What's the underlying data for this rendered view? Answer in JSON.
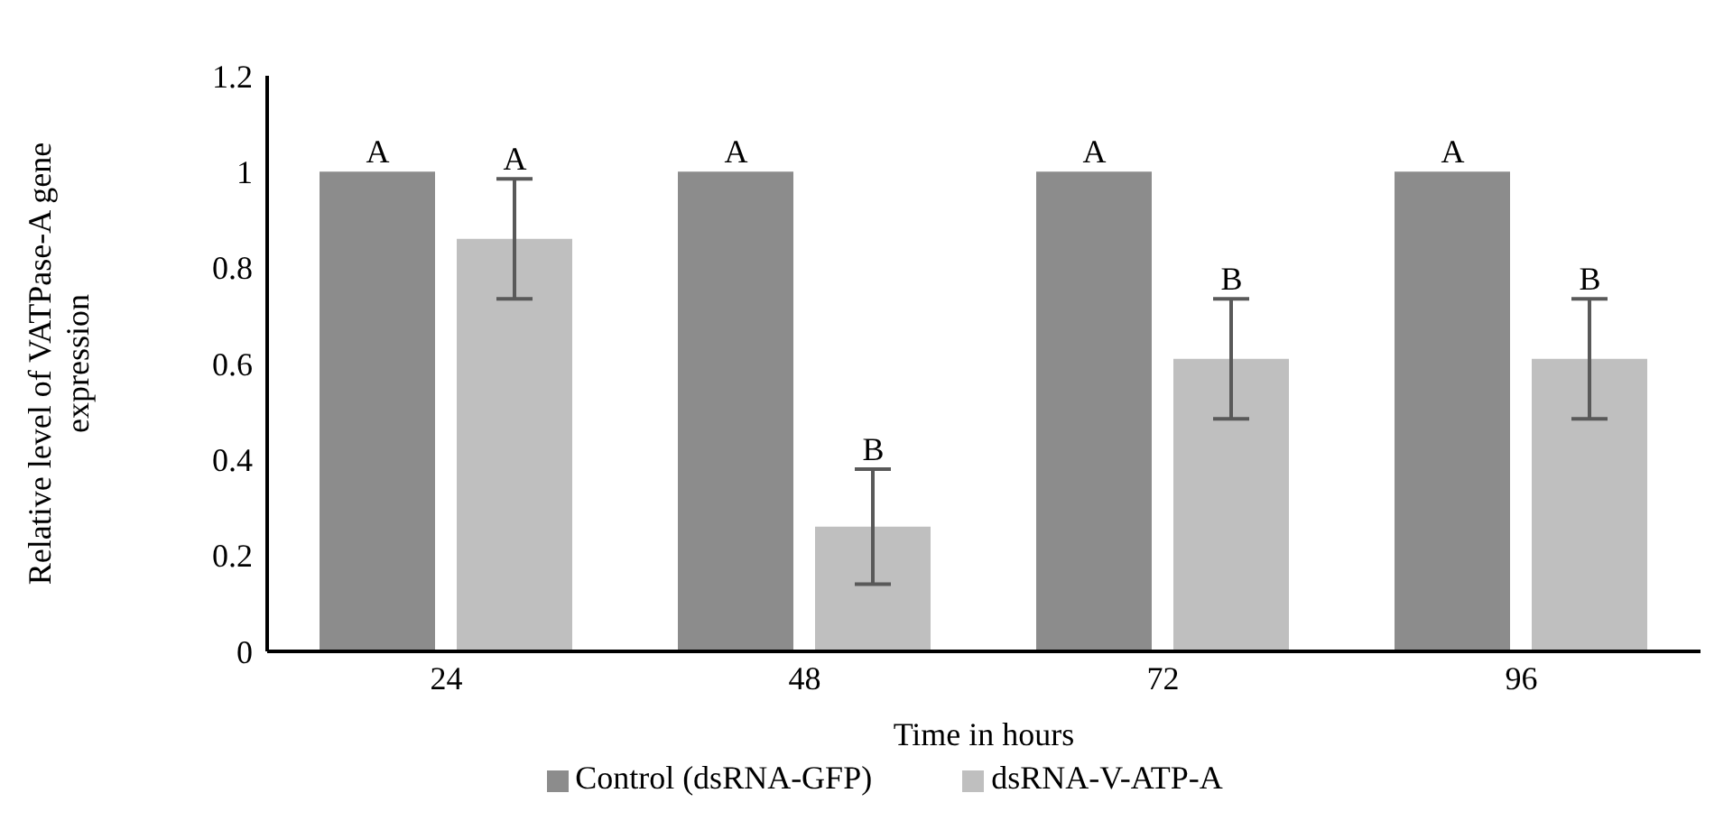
{
  "chart_data": {
    "type": "bar",
    "xlabel": "Time in hours",
    "ylabel": "Relative level of VATPase-A gene expression",
    "categories": [
      "24",
      "48",
      "72",
      "96"
    ],
    "series": [
      {
        "name": "Control (dsRNA-GFP)",
        "color": "#8c8c8c",
        "values": [
          1,
          1,
          1,
          1
        ],
        "errors": [
          0,
          0,
          0,
          0
        ]
      },
      {
        "name": "dsRNA-V-ATP-A",
        "color": "#bfbfbf",
        "values": [
          0.86,
          0.26,
          0.61,
          0.61
        ],
        "errors": [
          0.125,
          0.12,
          0.125,
          0.125
        ]
      }
    ],
    "annotations": [
      "A",
      "A",
      "A",
      "B",
      "A",
      "B",
      "A",
      "B"
    ],
    "ylim": [
      0,
      1.2
    ],
    "yticks": [
      0,
      0.2,
      0.4,
      0.6,
      0.8,
      1,
      1.2
    ],
    "grid": false,
    "legend": "bottom"
  }
}
